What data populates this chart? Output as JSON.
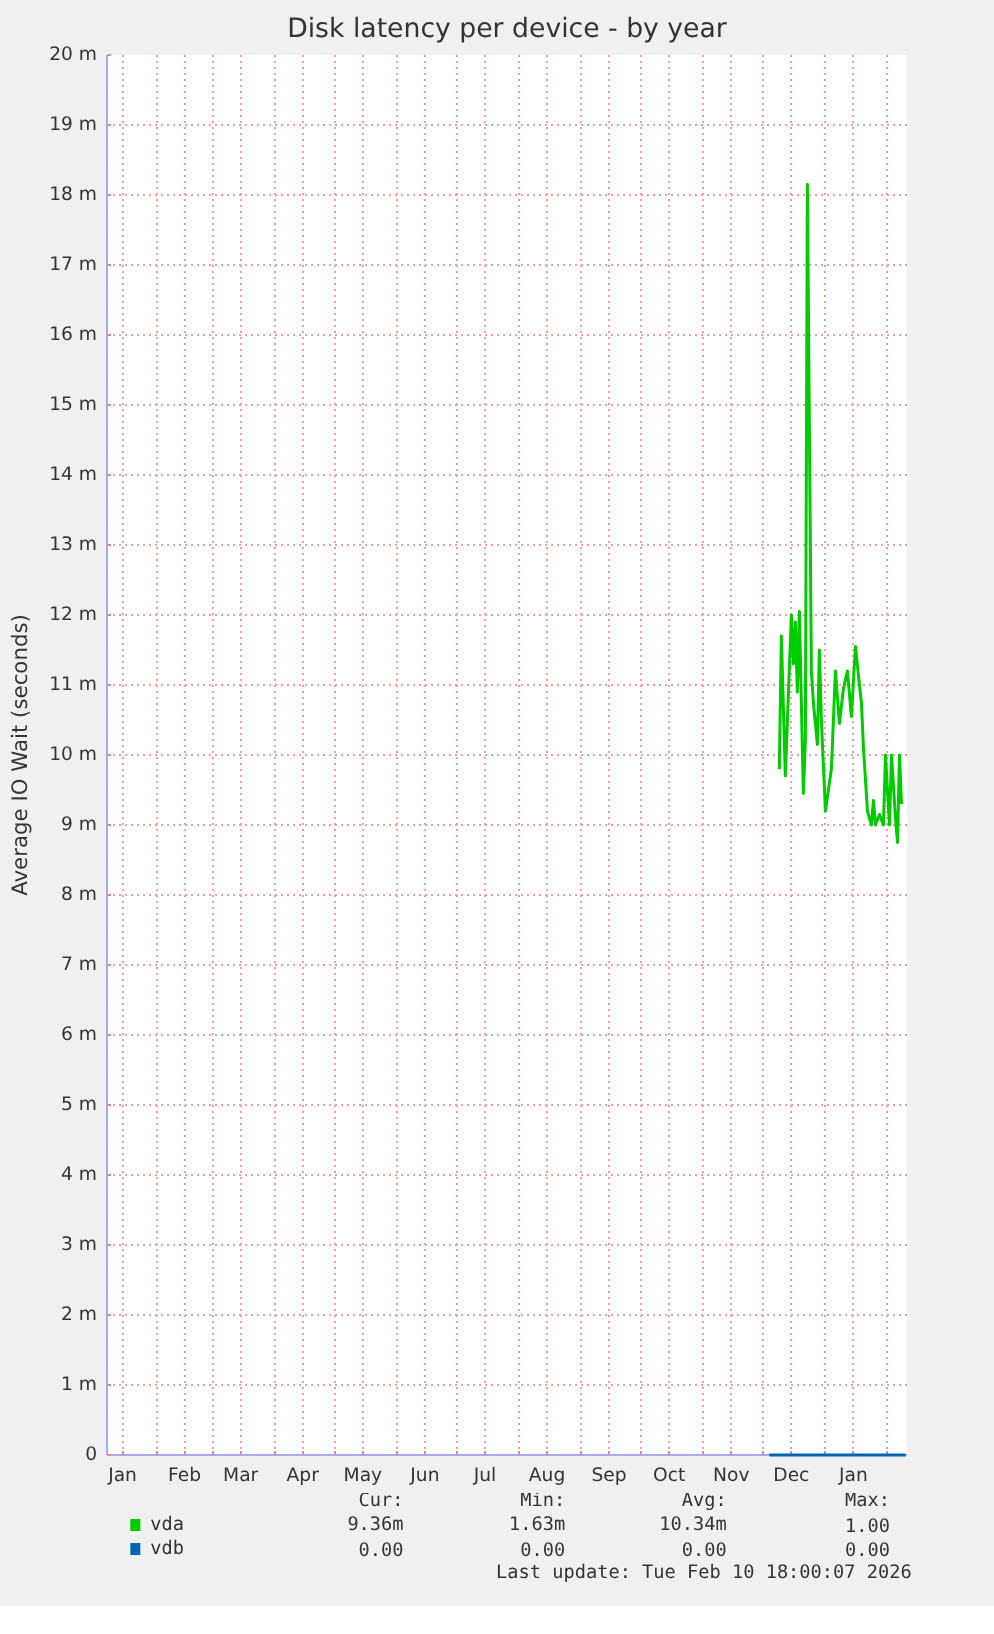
{
  "chart_data": {
    "type": "line",
    "title": "Disk latency per device - by year",
    "ylabel": "Average IO Wait (seconds)",
    "xlim": [
      "2025-01-07T06:00",
      "2026-02-10T18:00"
    ],
    "xticks": [
      {
        "value": "2025-01-15",
        "label": "Jan"
      },
      {
        "value": "2025-02-01",
        "label": null
      },
      {
        "value": "2025-02-15",
        "label": "Feb"
      },
      {
        "value": "2025-03-01",
        "label": null
      },
      {
        "value": "2025-03-15",
        "label": "Mar"
      },
      {
        "value": "2025-04-01",
        "label": null
      },
      {
        "value": "2025-04-15",
        "label": "Apr"
      },
      {
        "value": "2025-05-01",
        "label": null
      },
      {
        "value": "2025-05-15",
        "label": "May"
      },
      {
        "value": "2025-06-01",
        "label": null
      },
      {
        "value": "2025-06-15",
        "label": "Jun"
      },
      {
        "value": "2025-07-01",
        "label": null
      },
      {
        "value": "2025-07-15",
        "label": "Jul"
      },
      {
        "value": "2025-08-01",
        "label": null
      },
      {
        "value": "2025-08-15",
        "label": "Aug"
      },
      {
        "value": "2025-09-01",
        "label": null
      },
      {
        "value": "2025-09-15",
        "label": "Sep"
      },
      {
        "value": "2025-10-01",
        "label": null
      },
      {
        "value": "2025-10-15",
        "label": "Oct"
      },
      {
        "value": "2025-11-01",
        "label": null
      },
      {
        "value": "2025-11-15",
        "label": "Nov"
      },
      {
        "value": "2025-12-01",
        "label": null
      },
      {
        "value": "2025-12-15",
        "label": "Dec"
      },
      {
        "value": "2026-01-01",
        "label": null
      },
      {
        "value": "2026-01-15",
        "label": "Jan"
      },
      {
        "value": "2026-02-01",
        "label": null
      }
    ],
    "ylim": [
      0,
      20
    ],
    "yticks": [
      0,
      {
        "value": 1,
        "label": "1 m"
      },
      {
        "value": 2,
        "label": "2 m"
      },
      {
        "value": 3,
        "label": "3 m"
      },
      {
        "value": 4,
        "label": "4 m"
      },
      {
        "value": 5,
        "label": "5 m"
      },
      {
        "value": 6,
        "label": "6 m"
      },
      {
        "value": 7,
        "label": "7 m"
      },
      {
        "value": 8,
        "label": "8 m"
      },
      {
        "value": 9,
        "label": "9 m"
      },
      {
        "value": 10,
        "label": "10 m"
      },
      {
        "value": 11,
        "label": "11 m"
      },
      {
        "value": 12,
        "label": "12 m"
      },
      {
        "value": 13,
        "label": "13 m"
      },
      {
        "value": 14,
        "label": "14 m"
      },
      {
        "value": 15,
        "label": "15 m"
      },
      {
        "value": 16,
        "label": "16 m"
      },
      {
        "value": 17,
        "label": "17 m"
      },
      {
        "value": 18,
        "label": "18 m"
      },
      {
        "value": 19,
        "label": "19 m"
      },
      {
        "value": 20,
        "label": "20 m"
      }
    ],
    "grid": true,
    "legend": "bottom",
    "series": [
      {
        "name": "vda",
        "color": "#00cc00",
        "x": [
          "2025-12-09",
          "2025-12-10",
          "2025-12-12",
          "2025-12-15",
          "2025-12-16",
          "2025-12-17",
          "2025-12-18",
          "2025-12-19",
          "2025-12-21",
          "2025-12-22",
          "2025-12-23",
          "2025-12-25",
          "2025-12-26",
          "2025-12-28",
          "2025-12-29",
          "2025-12-30",
          "2026-01-01",
          "2026-01-02",
          "2026-01-04",
          "2026-01-06",
          "2026-01-08",
          "2026-01-10",
          "2026-01-12",
          "2026-01-14",
          "2026-01-16",
          "2026-01-18",
          "2026-01-19",
          "2026-01-20",
          "2026-01-22",
          "2026-01-24",
          "2026-01-25",
          "2026-01-26",
          "2026-01-28",
          "2026-01-30",
          "2026-01-31",
          "2026-02-02",
          "2026-02-03",
          "2026-02-05",
          "2026-02-06",
          "2026-02-07",
          "2026-02-08"
        ],
        "values": [
          9.8,
          11.7,
          9.7,
          12.0,
          11.3,
          11.9,
          10.9,
          12.05,
          9.45,
          10.2,
          18.15,
          11.2,
          10.75,
          10.15,
          11.5,
          10.5,
          9.2,
          9.4,
          9.8,
          11.2,
          10.45,
          10.95,
          11.2,
          10.55,
          11.55,
          11.0,
          10.75,
          10.1,
          9.2,
          9.0,
          9.35,
          9.0,
          9.15,
          9.0,
          10.0,
          9.0,
          10.0,
          9.1,
          8.75,
          10.0,
          9.3
        ]
      },
      {
        "name": "vdb",
        "color": "#0066b3",
        "x": [
          "2025-12-04",
          "2026-02-10"
        ],
        "values": [
          0,
          0
        ]
      }
    ],
    "annotations": [
      "Cur:",
      "Min:",
      "Avg:",
      "Max:",
      "9.36m",
      "1.63m",
      "10.34m",
      "1.00",
      "0.00",
      "0.00",
      "0.00",
      "0.00",
      "Last update: Tue Feb 10 18:00:07 2026"
    ]
  }
}
